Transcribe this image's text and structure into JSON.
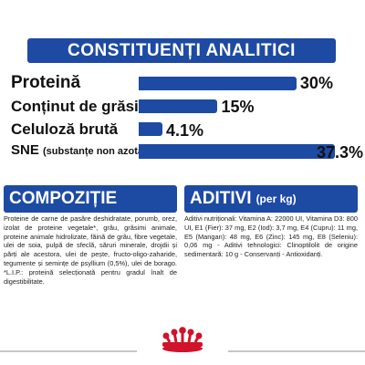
{
  "header": {
    "title": "CONSTITUENȚI ANALITICI"
  },
  "analytics": {
    "rows": [
      {
        "label": "Proteină",
        "value_text": "30%",
        "value": 30
      },
      {
        "label": "Conținut de grăsimi",
        "value_text": "15%",
        "value": 15
      },
      {
        "label": "Celuloză brută",
        "value_text": "4.1%",
        "value": 4.1
      },
      {
        "label_main": "SNE",
        "label_small": "(substanțe non azotate)",
        "value_text": "37.3%",
        "value": 37.3
      }
    ]
  },
  "composition": {
    "title": "COMPOZIȚIE",
    "text": "Proteine de carne de pasăre deshidratate, porumb, orez, izolat de proteine vegetale*, grâu, grăsimi animale, proteine animale hidrolizate, făină de grâu, fibre vegetale, ulei de soia, pulpă de sfeclă, săruri minerale, drojdii și părți ale acestora, ulei de pește, fructo-oligo-zaharide, tegumente și semințe de psyllium (0,5%), ulei de borago. *L.I.P.: proteină selecționată pentru gradul înalt de digestibilitate."
  },
  "additives": {
    "title": "ADITIVI",
    "subtitle": "(per kg)",
    "text": "Aditivi nutriționali: Vitamina A: 22000 UI, Vitamina D3: 800 UI, E1 (Fier): 37 mg, E2 (Iod): 3,7 mg, E4 (Cupru): 11 mg, E5 (Mangan): 48 mg, E6 (Zinc): 145 mg, E8 (Seleniu): 0,06 mg - Aditivi tehnologici: Clinoptilolit de origine sedimentară: 10 g - Conservanți - Antioxidanți."
  },
  "colors": {
    "brand_blue": "#1d4aa3",
    "logo_red": "#d0122a"
  },
  "icons": {
    "logo": "royal-canin-crown-logo"
  }
}
